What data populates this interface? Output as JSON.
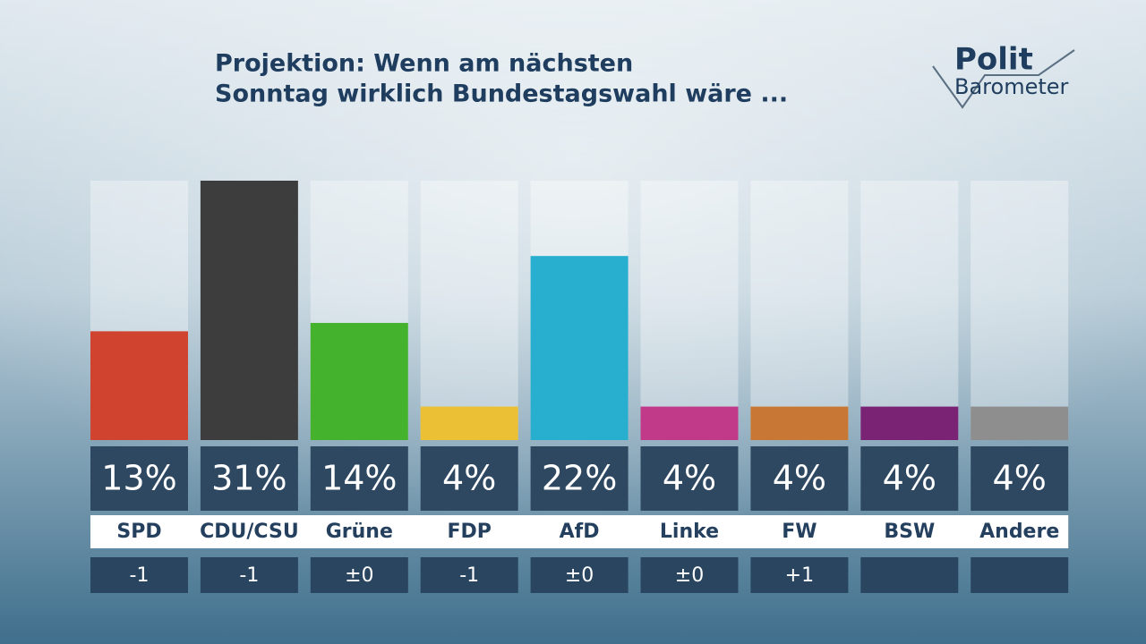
{
  "chart_data": {
    "type": "bar",
    "title_lines": [
      "Projektion: Wenn am nächsten",
      "Sonntag wirklich Bundestagswahl wäre ..."
    ],
    "logo": [
      "Polit",
      "Barometer"
    ],
    "categories": [
      "SPD",
      "CDU/CSU",
      "Grüne",
      "FDP",
      "AfD",
      "Linke",
      "FW",
      "BSW",
      "Andere"
    ],
    "values": [
      13,
      31,
      14,
      4,
      22,
      4,
      4,
      4,
      4
    ],
    "value_labels": [
      "13%",
      "31%",
      "14%",
      "4%",
      "22%",
      "4%",
      "4%",
      "4%",
      "4%"
    ],
    "changes": [
      "-1",
      "-1",
      "±0",
      "-1",
      "±0",
      "±0",
      "+1",
      null,
      null
    ],
    "colors": [
      "#d0432f",
      "#3d3d3d",
      "#45b22e",
      "#ebc035",
      "#28afcf",
      "#c13a8a",
      "#c87834",
      "#7a2375",
      "#8e8e8e"
    ],
    "ylim": [
      0,
      31
    ]
  }
}
